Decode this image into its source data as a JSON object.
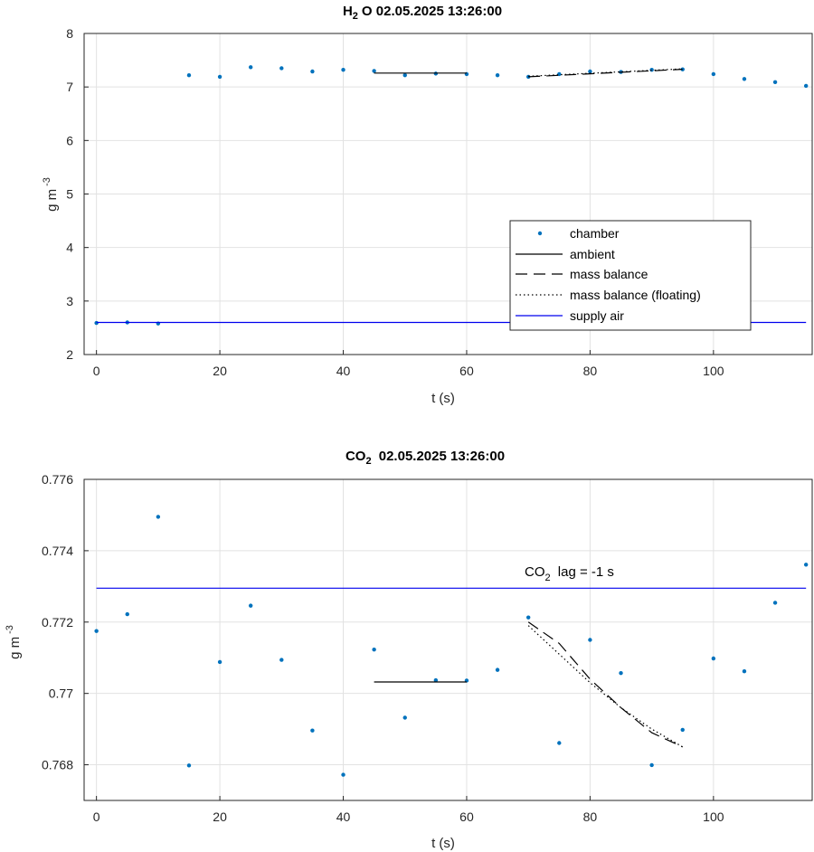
{
  "chart_data": [
    {
      "type": "scatter",
      "title": "H₂O  02.05.2025 13:26:00",
      "title_parts": {
        "main": "H",
        "sub": "2",
        "rest": "O  02.05.2025 13:26:00"
      },
      "xlabel": "t (s)",
      "ylabel": "g m",
      "ylabel_sup": "-3",
      "xlim": [
        -2,
        116
      ],
      "ylim": [
        2,
        8
      ],
      "xticks": [
        0,
        20,
        40,
        60,
        80,
        100
      ],
      "yticks": [
        2,
        3,
        4,
        5,
        6,
        7,
        8
      ],
      "ytick_labels": [
        "2",
        "3",
        "4",
        "5",
        "6",
        "7",
        "8"
      ],
      "grid": true,
      "legend_position": "lower-right",
      "legend": [
        "chamber",
        "ambient",
        "mass balance",
        "mass balance (floating)",
        "supply air"
      ],
      "colors": {
        "chamber": "#0072BD",
        "ambient": "#000000",
        "mass_balance": "#000000",
        "floating": "#000000",
        "supply": "#0000EE"
      },
      "series": [
        {
          "name": "chamber",
          "style": "dots",
          "x": [
            0,
            5,
            10,
            15,
            20,
            25,
            30,
            35,
            40,
            45,
            50,
            55,
            60,
            65,
            70,
            75,
            80,
            85,
            90,
            95,
            100,
            105,
            110,
            115
          ],
          "y": [
            2.59,
            2.6,
            2.58,
            7.22,
            7.19,
            7.37,
            7.35,
            7.29,
            7.32,
            7.3,
            7.22,
            7.25,
            7.24,
            7.22,
            7.19,
            7.24,
            7.29,
            7.28,
            7.32,
            7.33,
            7.24,
            7.15,
            7.09,
            7.02
          ]
        },
        {
          "name": "ambient",
          "style": "solid",
          "x": [
            45,
            60
          ],
          "y": [
            7.26,
            7.26
          ]
        },
        {
          "name": "mass balance",
          "style": "dashed",
          "x": [
            70,
            95
          ],
          "y": [
            7.19,
            7.33
          ]
        },
        {
          "name": "mass balance (floating)",
          "style": "dotted",
          "x": [
            70,
            95
          ],
          "y": [
            7.2,
            7.34
          ]
        },
        {
          "name": "supply air",
          "style": "solid",
          "x": [
            0,
            115
          ],
          "y": [
            2.6,
            2.6
          ]
        }
      ]
    },
    {
      "type": "scatter",
      "title": "CO₂  02.05.2025 13:26:00",
      "title_parts": {
        "main": "CO",
        "sub": "2",
        "rest": " 02.05.2025 13:26:00"
      },
      "xlabel": "t (s)",
      "ylabel": "g m",
      "ylabel_sup": "-3",
      "xlim": [
        -2,
        116
      ],
      "ylim": [
        0.767,
        0.776
      ],
      "xticks": [
        0,
        20,
        40,
        60,
        80,
        100
      ],
      "yticks": [
        0.768,
        0.77,
        0.772,
        0.774,
        0.776
      ],
      "ytick_labels": [
        "0.768",
        "0.77",
        "0.772",
        "0.774",
        "0.776"
      ],
      "grid": true,
      "annotation": {
        "main": "CO",
        "sub": "2",
        "rest": " lag = -1 s",
        "x": 70,
        "y": 0.7733
      },
      "colors": {
        "chamber": "#0072BD",
        "ambient": "#000000",
        "mass_balance": "#000000",
        "floating": "#000000",
        "supply": "#0000EE"
      },
      "series": [
        {
          "name": "chamber",
          "style": "dots",
          "x": [
            0,
            5,
            10,
            15,
            20,
            25,
            30,
            35,
            40,
            45,
            50,
            55,
            60,
            65,
            70,
            75,
            80,
            85,
            90,
            95,
            100,
            105,
            110,
            115
          ],
          "y": [
            0.77175,
            0.77222,
            0.77495,
            0.76798,
            0.77088,
            0.77246,
            0.77094,
            0.76896,
            0.76772,
            0.77123,
            0.76932,
            0.77037,
            0.77036,
            0.77066,
            0.77213,
            0.76861,
            0.7715,
            0.77057,
            0.76799,
            0.76898,
            0.77098,
            0.77062,
            0.77254,
            0.77361
          ]
        },
        {
          "name": "ambient",
          "style": "solid",
          "x": [
            45,
            60
          ],
          "y": [
            0.77032,
            0.77032
          ]
        },
        {
          "name": "mass balance",
          "style": "dashed",
          "x": [
            70,
            75,
            80,
            85,
            90,
            95
          ],
          "y": [
            0.772,
            0.7714,
            0.7704,
            0.7696,
            0.7689,
            0.7685
          ]
        },
        {
          "name": "mass balance (floating)",
          "style": "dotted",
          "x": [
            70,
            75,
            80,
            85,
            90,
            95
          ],
          "y": [
            0.7719,
            0.7711,
            0.7703,
            0.7696,
            0.769,
            0.7685
          ]
        },
        {
          "name": "supply air",
          "style": "solid",
          "x": [
            0,
            115
          ],
          "y": [
            0.77295,
            0.77295
          ]
        }
      ]
    }
  ]
}
